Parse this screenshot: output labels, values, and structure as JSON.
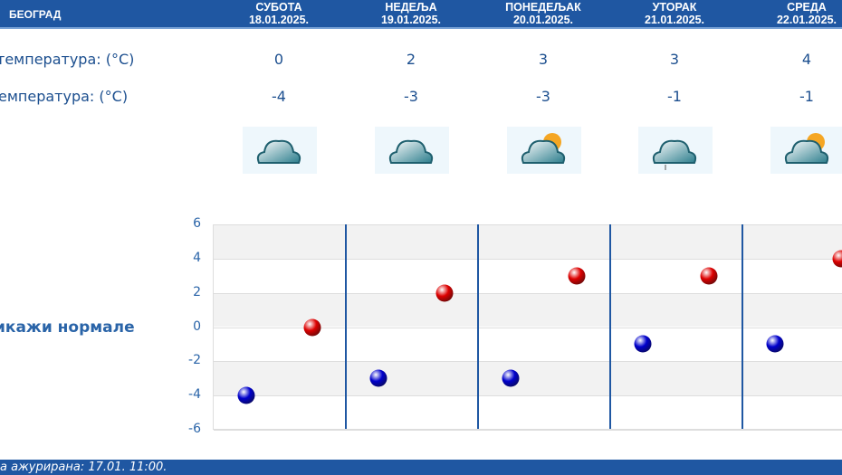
{
  "header": {
    "city": "БЕОГРАД",
    "days": [
      {
        "name": "СУБОТА",
        "date": "18.01.2025."
      },
      {
        "name": "НЕДЕЉА",
        "date": "19.01.2025."
      },
      {
        "name": "ПОНЕДЕЉАК",
        "date": "20.01.2025."
      },
      {
        "name": "УТОРАК",
        "date": "21.01.2025."
      },
      {
        "name": "СРЕДА",
        "date": "22.01.2025."
      }
    ]
  },
  "rows": {
    "max_label": "температура: (°C)",
    "min_label": "емпература: (°C)",
    "icon_label": ":"
  },
  "max_temps": [
    "0",
    "2",
    "3",
    "3",
    "4"
  ],
  "min_temps": [
    "-4",
    "-3",
    "-3",
    "-1",
    "-1"
  ],
  "weather_icons": [
    "cloudy",
    "cloudy",
    "partly-sunny-showers",
    "cloudy-light-rain",
    "partly-sunny"
  ],
  "normals_toggle": "икажи нормале",
  "footer": "а ажурирана:  17.01. 11:00.",
  "chart_data": {
    "type": "scatter",
    "ylim": [
      -6,
      6
    ],
    "yticks": [
      "6",
      "4",
      "2",
      "0",
      "-2",
      "-4",
      "-6"
    ],
    "categories": [
      "18.01.2025.",
      "19.01.2025.",
      "20.01.2025.",
      "21.01.2025.",
      "22.01.2025."
    ],
    "series": [
      {
        "color": "#0000cc",
        "values": [
          -4,
          -3,
          -3,
          -1,
          -1
        ]
      },
      {
        "color": "#dd0000",
        "values": [
          0,
          2,
          3,
          3,
          4
        ]
      }
    ]
  }
}
